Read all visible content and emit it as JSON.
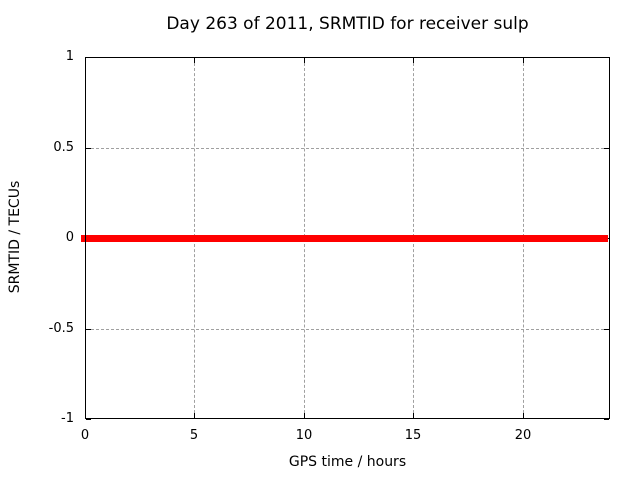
{
  "chart_data": {
    "type": "line",
    "title": "Day 263 of 2011, SRMTID for receiver sulp",
    "xlabel": "GPS time / hours",
    "ylabel": "SRMTID / TECUs",
    "xlim": [
      0,
      24
    ],
    "ylim": [
      -1,
      1
    ],
    "xticks": [
      0,
      5,
      10,
      15,
      20
    ],
    "yticks": [
      -1,
      -0.5,
      0,
      0.5,
      1
    ],
    "grid": true,
    "legend_position": "none",
    "series": [
      {
        "name": "SRMTID",
        "color": "#ff0000",
        "linewidth": 7,
        "x": [
          0,
          24
        ],
        "y": [
          0,
          0
        ]
      }
    ]
  },
  "colors": {
    "background": "#ffffff",
    "axis": "#000000",
    "grid": "#a0a0a0",
    "line": "#ff0000",
    "text": "#000000"
  }
}
